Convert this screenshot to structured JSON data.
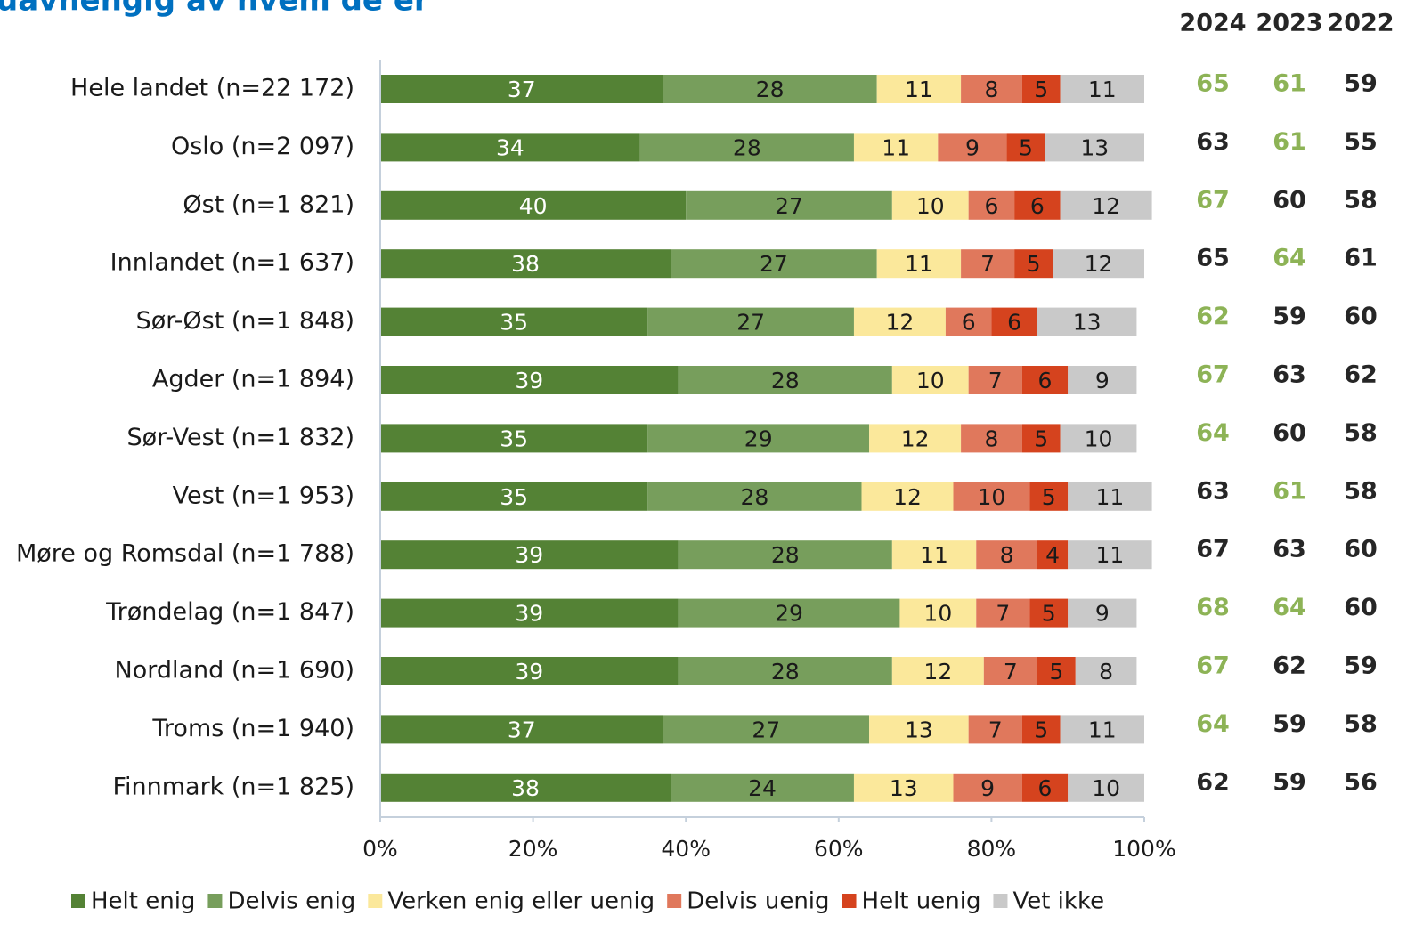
{
  "chart_data": {
    "type": "bar",
    "orientation": "horizontal",
    "stacked": true,
    "title": "uavhengig av hvem de er",
    "categories": [
      "Hele landet (n=22 172)",
      "Oslo (n=2 097)",
      "Øst (n=1 821)",
      "Innlandet (n=1 637)",
      "Sør-Øst (n=1 848)",
      "Agder (n=1 894)",
      "Sør-Vest (n=1 832)",
      "Vest (n=1 953)",
      "Møre og Romsdal (n=1 788)",
      "Trøndelag (n=1 847)",
      "Nordland (n=1 690)",
      "Troms (n=1 940)",
      "Finnmark (n=1 825)"
    ],
    "series": [
      {
        "name": "Helt enig",
        "color": "#548235",
        "label_color": "#ffffff",
        "values": [
          37,
          34,
          40,
          38,
          35,
          39,
          35,
          35,
          39,
          39,
          39,
          37,
          38
        ]
      },
      {
        "name": "Delvis enig",
        "color": "#779e5c",
        "label_color": "#1a1a1a",
        "values": [
          28,
          28,
          27,
          27,
          27,
          28,
          29,
          28,
          28,
          29,
          28,
          27,
          24
        ]
      },
      {
        "name": "Verken enig eller uenig",
        "color": "#fbe89b",
        "label_color": "#1a1a1a",
        "values": [
          11,
          11,
          10,
          11,
          12,
          10,
          12,
          12,
          11,
          10,
          12,
          13,
          13
        ]
      },
      {
        "name": "Delvis uenig",
        "color": "#e0785c",
        "label_color": "#1a1a1a",
        "values": [
          8,
          9,
          6,
          7,
          6,
          7,
          8,
          10,
          8,
          7,
          7,
          7,
          9
        ]
      },
      {
        "name": "Helt uenig",
        "color": "#d5431e",
        "label_color": "#1a1a1a",
        "values": [
          5,
          5,
          6,
          5,
          6,
          6,
          5,
          5,
          4,
          5,
          5,
          5,
          6
        ]
      },
      {
        "name": "Vet ikke",
        "color": "#c9c9c9",
        "label_color": "#1a1a1a",
        "values": [
          11,
          13,
          12,
          12,
          13,
          9,
          10,
          11,
          11,
          9,
          8,
          11,
          10
        ]
      }
    ],
    "xlim": [
      0,
      100
    ],
    "xticks": [
      {
        "value": 0,
        "label": "0%"
      },
      {
        "value": 20,
        "label": "20%"
      },
      {
        "value": 40,
        "label": "40%"
      },
      {
        "value": 60,
        "label": "60%"
      },
      {
        "value": 80,
        "label": "80%"
      },
      {
        "value": 100,
        "label": "100%"
      }
    ],
    "legend": "bottom"
  },
  "table": {
    "columns": [
      "2024",
      "2023",
      "2022"
    ],
    "rows": [
      [
        65,
        61,
        59
      ],
      [
        63,
        61,
        55
      ],
      [
        67,
        60,
        58
      ],
      [
        65,
        64,
        61
      ],
      [
        62,
        59,
        60
      ],
      [
        67,
        63,
        62
      ],
      [
        64,
        60,
        58
      ],
      [
        63,
        61,
        58
      ],
      [
        67,
        63,
        60
      ],
      [
        68,
        64,
        60
      ],
      [
        67,
        62,
        59
      ],
      [
        64,
        59,
        58
      ],
      [
        62,
        59,
        56
      ]
    ],
    "colors": [
      [
        "#8db356",
        "#8db356",
        "#262626"
      ],
      [
        "#262626",
        "#8db356",
        "#262626"
      ],
      [
        "#8db356",
        "#262626",
        "#262626"
      ],
      [
        "#262626",
        "#8db356",
        "#262626"
      ],
      [
        "#8db356",
        "#262626",
        "#262626"
      ],
      [
        "#8db356",
        "#262626",
        "#262626"
      ],
      [
        "#8db356",
        "#262626",
        "#262626"
      ],
      [
        "#262626",
        "#8db356",
        "#262626"
      ],
      [
        "#262626",
        "#262626",
        "#262626"
      ],
      [
        "#8db356",
        "#8db356",
        "#262626"
      ],
      [
        "#8db356",
        "#262626",
        "#262626"
      ],
      [
        "#8db356",
        "#262626",
        "#262626"
      ],
      [
        "#262626",
        "#262626",
        "#262626"
      ]
    ]
  }
}
